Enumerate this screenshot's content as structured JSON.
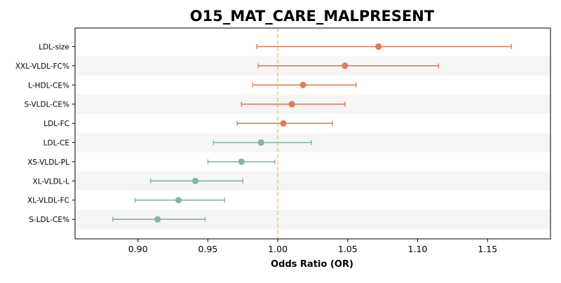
{
  "chart_data": {
    "type": "forest",
    "title": "O15_MAT_CARE_MALPRESENT",
    "xlabel": "Odds Ratio (OR)",
    "ylabel": "",
    "xlim": [
      0.855,
      1.195
    ],
    "xticks": [
      0.9,
      0.95,
      1.0,
      1.05,
      1.1,
      1.15
    ],
    "xtick_labels": [
      "0.90",
      "0.95",
      "1.00",
      "1.05",
      "1.10",
      "1.15"
    ],
    "reference_line": 1.0,
    "grid": false,
    "colors": {
      "positive": "#e07b5f",
      "negative": "#85b59d",
      "reference": "#f5c77e",
      "band": "#f5f5f5"
    },
    "series": [
      {
        "label": "LDL-size",
        "or": 1.072,
        "lower": 0.985,
        "upper": 1.167
      },
      {
        "label": "XXL-VLDL-FC%",
        "or": 1.048,
        "lower": 0.986,
        "upper": 1.115
      },
      {
        "label": "L-HDL-CE%",
        "or": 1.018,
        "lower": 0.982,
        "upper": 1.056
      },
      {
        "label": "S-VLDL-CE%",
        "or": 1.01,
        "lower": 0.974,
        "upper": 1.048
      },
      {
        "label": "LDL-FC",
        "or": 1.004,
        "lower": 0.971,
        "upper": 1.039
      },
      {
        "label": "LDL-CE",
        "or": 0.988,
        "lower": 0.954,
        "upper": 1.024
      },
      {
        "label": "XS-VLDL-PL",
        "or": 0.974,
        "lower": 0.95,
        "upper": 0.998
      },
      {
        "label": "XL-VLDL-L",
        "or": 0.941,
        "lower": 0.909,
        "upper": 0.975
      },
      {
        "label": "XL-VLDL-FC",
        "or": 0.929,
        "lower": 0.898,
        "upper": 0.962
      },
      {
        "label": "S-LDL-CE%",
        "or": 0.914,
        "lower": 0.882,
        "upper": 0.948
      }
    ]
  }
}
